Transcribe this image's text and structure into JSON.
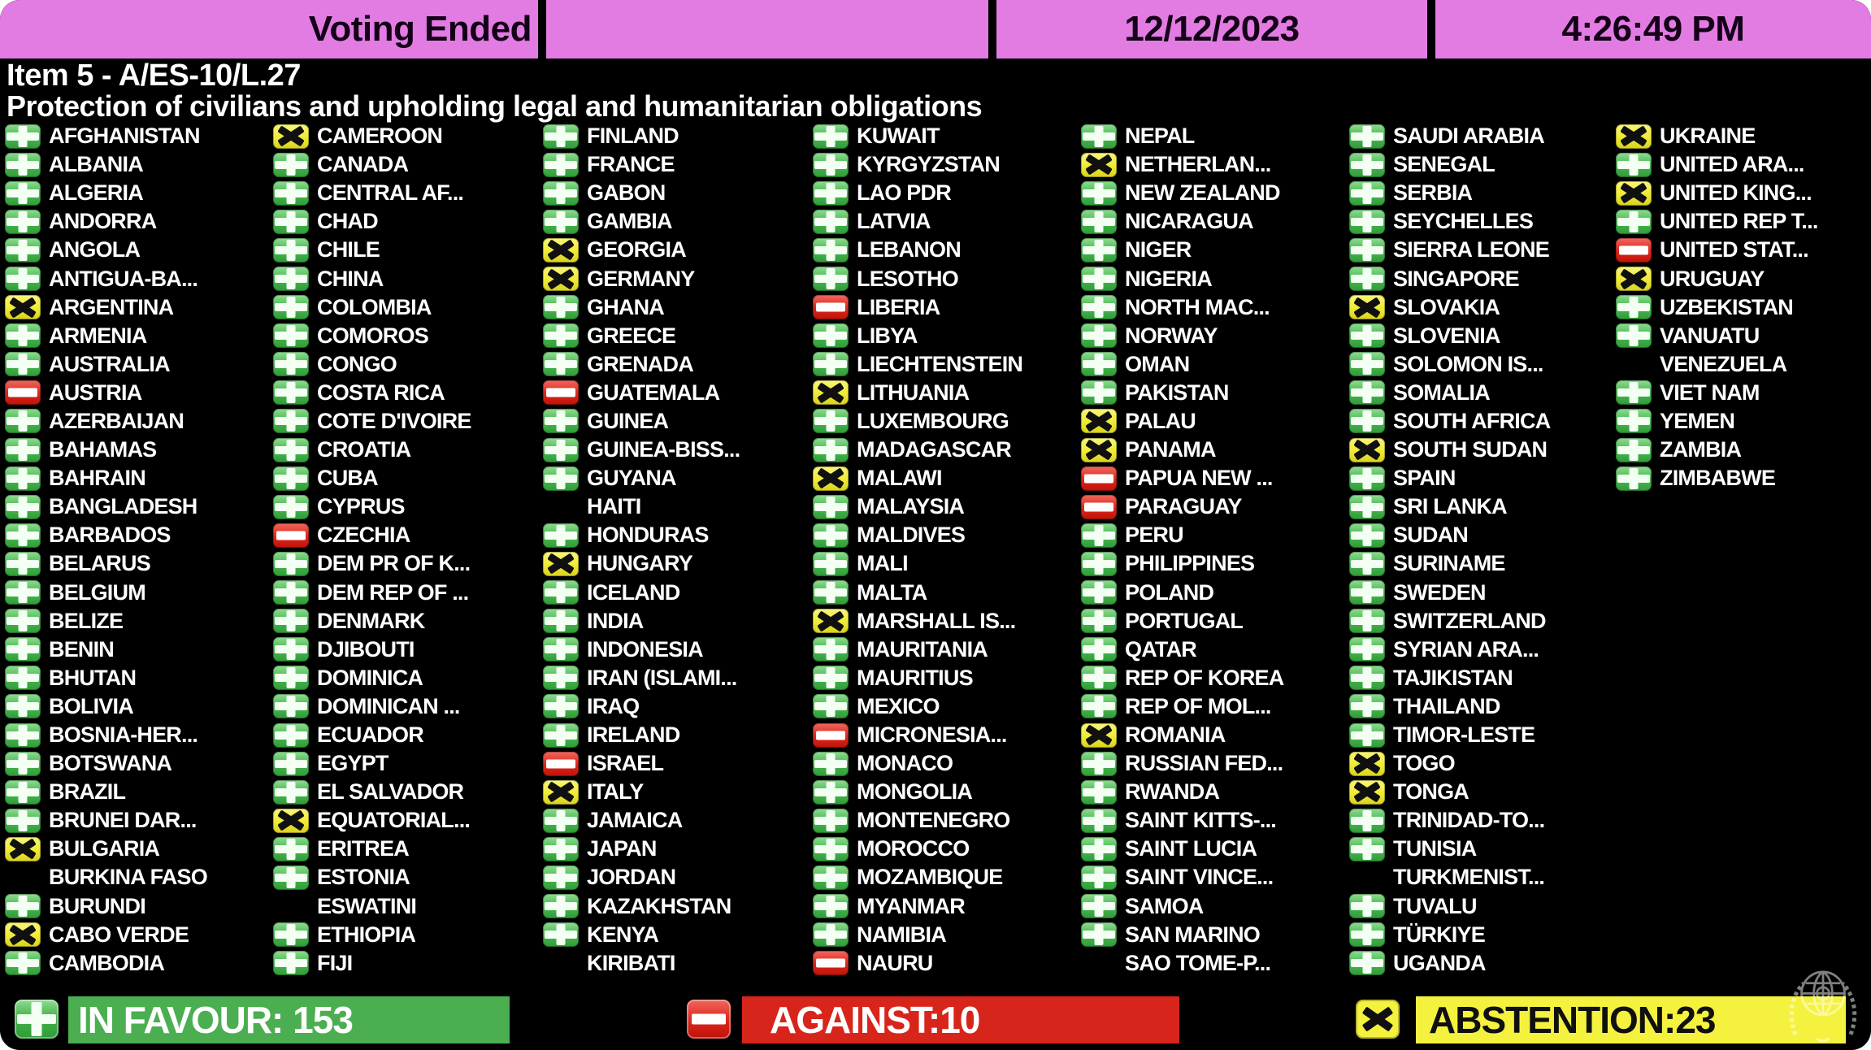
{
  "header": {
    "status": "Voting Ended",
    "date": "12/12/2023",
    "time": "4:26:49 PM",
    "item_line1": "Item 5 - A/ES-10/L.27",
    "item_line2": "Protection of civilians and upholding legal and humanitarian obligations"
  },
  "summary": {
    "in_favour": "IN FAVOUR: 153",
    "against": "AGAINST:10",
    "abstention": "ABSTENTION:23"
  },
  "colors": {
    "header_magenta": "#e27ce2",
    "in_favour_green": "#4bae50",
    "against_red": "#d8251c",
    "abstention_yellow": "#f5f23f",
    "background": "#000000",
    "text_white": "#ffffff"
  },
  "vote_codes": {
    "Y": "in favour",
    "N": "against",
    "A": "abstention",
    "": "no vote recorded"
  },
  "columns": [
    [
      {
        "n": "AFGHANISTAN",
        "v": "Y"
      },
      {
        "n": "ALBANIA",
        "v": "Y"
      },
      {
        "n": "ALGERIA",
        "v": "Y"
      },
      {
        "n": "ANDORRA",
        "v": "Y"
      },
      {
        "n": "ANGOLA",
        "v": "Y"
      },
      {
        "n": "ANTIGUA-BA...",
        "v": "Y"
      },
      {
        "n": "ARGENTINA",
        "v": "A"
      },
      {
        "n": "ARMENIA",
        "v": "Y"
      },
      {
        "n": "AUSTRALIA",
        "v": "Y"
      },
      {
        "n": "AUSTRIA",
        "v": "N"
      },
      {
        "n": "AZERBAIJAN",
        "v": "Y"
      },
      {
        "n": "BAHAMAS",
        "v": "Y"
      },
      {
        "n": "BAHRAIN",
        "v": "Y"
      },
      {
        "n": "BANGLADESH",
        "v": "Y"
      },
      {
        "n": "BARBADOS",
        "v": "Y"
      },
      {
        "n": "BELARUS",
        "v": "Y"
      },
      {
        "n": "BELGIUM",
        "v": "Y"
      },
      {
        "n": "BELIZE",
        "v": "Y"
      },
      {
        "n": "BENIN",
        "v": "Y"
      },
      {
        "n": "BHUTAN",
        "v": "Y"
      },
      {
        "n": "BOLIVIA",
        "v": "Y"
      },
      {
        "n": "BOSNIA-HER...",
        "v": "Y"
      },
      {
        "n": "BOTSWANA",
        "v": "Y"
      },
      {
        "n": "BRAZIL",
        "v": "Y"
      },
      {
        "n": "BRUNEI DAR...",
        "v": "Y"
      },
      {
        "n": "BULGARIA",
        "v": "A"
      },
      {
        "n": "BURKINA FASO",
        "v": ""
      },
      {
        "n": "BURUNDI",
        "v": "Y"
      },
      {
        "n": "CABO VERDE",
        "v": "A"
      },
      {
        "n": "CAMBODIA",
        "v": "Y"
      }
    ],
    [
      {
        "n": "CAMEROON",
        "v": "A"
      },
      {
        "n": "CANADA",
        "v": "Y"
      },
      {
        "n": "CENTRAL AF...",
        "v": "Y"
      },
      {
        "n": "CHAD",
        "v": "Y"
      },
      {
        "n": "CHILE",
        "v": "Y"
      },
      {
        "n": "CHINA",
        "v": "Y"
      },
      {
        "n": "COLOMBIA",
        "v": "Y"
      },
      {
        "n": "COMOROS",
        "v": "Y"
      },
      {
        "n": "CONGO",
        "v": "Y"
      },
      {
        "n": "COSTA RICA",
        "v": "Y"
      },
      {
        "n": "COTE D'IVOIRE",
        "v": "Y"
      },
      {
        "n": "CROATIA",
        "v": "Y"
      },
      {
        "n": "CUBA",
        "v": "Y"
      },
      {
        "n": "CYPRUS",
        "v": "Y"
      },
      {
        "n": "CZECHIA",
        "v": "N"
      },
      {
        "n": "DEM PR OF K...",
        "v": "Y"
      },
      {
        "n": "DEM REP OF ...",
        "v": "Y"
      },
      {
        "n": "DENMARK",
        "v": "Y"
      },
      {
        "n": "DJIBOUTI",
        "v": "Y"
      },
      {
        "n": "DOMINICA",
        "v": "Y"
      },
      {
        "n": "DOMINICAN ...",
        "v": "Y"
      },
      {
        "n": "ECUADOR",
        "v": "Y"
      },
      {
        "n": "EGYPT",
        "v": "Y"
      },
      {
        "n": "EL SALVADOR",
        "v": "Y"
      },
      {
        "n": "EQUATORIAL...",
        "v": "A"
      },
      {
        "n": "ERITREA",
        "v": "Y"
      },
      {
        "n": "ESTONIA",
        "v": "Y"
      },
      {
        "n": "ESWATINI",
        "v": ""
      },
      {
        "n": "ETHIOPIA",
        "v": "Y"
      },
      {
        "n": "FIJI",
        "v": "Y"
      }
    ],
    [
      {
        "n": "FINLAND",
        "v": "Y"
      },
      {
        "n": "FRANCE",
        "v": "Y"
      },
      {
        "n": "GABON",
        "v": "Y"
      },
      {
        "n": "GAMBIA",
        "v": "Y"
      },
      {
        "n": "GEORGIA",
        "v": "A"
      },
      {
        "n": "GERMANY",
        "v": "A"
      },
      {
        "n": "GHANA",
        "v": "Y"
      },
      {
        "n": "GREECE",
        "v": "Y"
      },
      {
        "n": "GRENADA",
        "v": "Y"
      },
      {
        "n": "GUATEMALA",
        "v": "N"
      },
      {
        "n": "GUINEA",
        "v": "Y"
      },
      {
        "n": "GUINEA-BISS...",
        "v": "Y"
      },
      {
        "n": "GUYANA",
        "v": "Y"
      },
      {
        "n": "HAITI",
        "v": ""
      },
      {
        "n": "HONDURAS",
        "v": "Y"
      },
      {
        "n": "HUNGARY",
        "v": "A"
      },
      {
        "n": "ICELAND",
        "v": "Y"
      },
      {
        "n": "INDIA",
        "v": "Y"
      },
      {
        "n": "INDONESIA",
        "v": "Y"
      },
      {
        "n": "IRAN (ISLAMI...",
        "v": "Y"
      },
      {
        "n": "IRAQ",
        "v": "Y"
      },
      {
        "n": "IRELAND",
        "v": "Y"
      },
      {
        "n": "ISRAEL",
        "v": "N"
      },
      {
        "n": "ITALY",
        "v": "A"
      },
      {
        "n": "JAMAICA",
        "v": "Y"
      },
      {
        "n": "JAPAN",
        "v": "Y"
      },
      {
        "n": "JORDAN",
        "v": "Y"
      },
      {
        "n": "KAZAKHSTAN",
        "v": "Y"
      },
      {
        "n": "KENYA",
        "v": "Y"
      },
      {
        "n": "KIRIBATI",
        "v": ""
      }
    ],
    [
      {
        "n": "KUWAIT",
        "v": "Y"
      },
      {
        "n": "KYRGYZSTAN",
        "v": "Y"
      },
      {
        "n": "LAO PDR",
        "v": "Y"
      },
      {
        "n": "LATVIA",
        "v": "Y"
      },
      {
        "n": "LEBANON",
        "v": "Y"
      },
      {
        "n": "LESOTHO",
        "v": "Y"
      },
      {
        "n": "LIBERIA",
        "v": "N"
      },
      {
        "n": "LIBYA",
        "v": "Y"
      },
      {
        "n": "LIECHTENSTEIN",
        "v": "Y"
      },
      {
        "n": "LITHUANIA",
        "v": "A"
      },
      {
        "n": "LUXEMBOURG",
        "v": "Y"
      },
      {
        "n": "MADAGASCAR",
        "v": "Y"
      },
      {
        "n": "MALAWI",
        "v": "A"
      },
      {
        "n": "MALAYSIA",
        "v": "Y"
      },
      {
        "n": "MALDIVES",
        "v": "Y"
      },
      {
        "n": "MALI",
        "v": "Y"
      },
      {
        "n": "MALTA",
        "v": "Y"
      },
      {
        "n": "MARSHALL IS...",
        "v": "A"
      },
      {
        "n": "MAURITANIA",
        "v": "Y"
      },
      {
        "n": "MAURITIUS",
        "v": "Y"
      },
      {
        "n": "MEXICO",
        "v": "Y"
      },
      {
        "n": "MICRONESIA...",
        "v": "N"
      },
      {
        "n": "MONACO",
        "v": "Y"
      },
      {
        "n": "MONGOLIA",
        "v": "Y"
      },
      {
        "n": "MONTENEGRO",
        "v": "Y"
      },
      {
        "n": "MOROCCO",
        "v": "Y"
      },
      {
        "n": "MOZAMBIQUE",
        "v": "Y"
      },
      {
        "n": "MYANMAR",
        "v": "Y"
      },
      {
        "n": "NAMIBIA",
        "v": "Y"
      },
      {
        "n": "NAURU",
        "v": "N"
      }
    ],
    [
      {
        "n": "NEPAL",
        "v": "Y"
      },
      {
        "n": "NETHERLAN...",
        "v": "A"
      },
      {
        "n": "NEW ZEALAND",
        "v": "Y"
      },
      {
        "n": "NICARAGUA",
        "v": "Y"
      },
      {
        "n": "NIGER",
        "v": "Y"
      },
      {
        "n": "NIGERIA",
        "v": "Y"
      },
      {
        "n": "NORTH MAC...",
        "v": "Y"
      },
      {
        "n": "NORWAY",
        "v": "Y"
      },
      {
        "n": "OMAN",
        "v": "Y"
      },
      {
        "n": "PAKISTAN",
        "v": "Y"
      },
      {
        "n": "PALAU",
        "v": "A"
      },
      {
        "n": "PANAMA",
        "v": "A"
      },
      {
        "n": "PAPUA NEW ...",
        "v": "N"
      },
      {
        "n": "PARAGUAY",
        "v": "N"
      },
      {
        "n": "PERU",
        "v": "Y"
      },
      {
        "n": "PHILIPPINES",
        "v": "Y"
      },
      {
        "n": "POLAND",
        "v": "Y"
      },
      {
        "n": "PORTUGAL",
        "v": "Y"
      },
      {
        "n": "QATAR",
        "v": "Y"
      },
      {
        "n": "REP OF KOREA",
        "v": "Y"
      },
      {
        "n": "REP OF MOL...",
        "v": "Y"
      },
      {
        "n": "ROMANIA",
        "v": "A"
      },
      {
        "n": "RUSSIAN FED...",
        "v": "Y"
      },
      {
        "n": "RWANDA",
        "v": "Y"
      },
      {
        "n": "SAINT KITTS-...",
        "v": "Y"
      },
      {
        "n": "SAINT LUCIA",
        "v": "Y"
      },
      {
        "n": "SAINT VINCE...",
        "v": "Y"
      },
      {
        "n": "SAMOA",
        "v": "Y"
      },
      {
        "n": "SAN MARINO",
        "v": "Y"
      },
      {
        "n": "SAO TOME-P...",
        "v": ""
      }
    ],
    [
      {
        "n": "SAUDI ARABIA",
        "v": "Y"
      },
      {
        "n": "SENEGAL",
        "v": "Y"
      },
      {
        "n": "SERBIA",
        "v": "Y"
      },
      {
        "n": "SEYCHELLES",
        "v": "Y"
      },
      {
        "n": "SIERRA LEONE",
        "v": "Y"
      },
      {
        "n": "SINGAPORE",
        "v": "Y"
      },
      {
        "n": "SLOVAKIA",
        "v": "A"
      },
      {
        "n": "SLOVENIA",
        "v": "Y"
      },
      {
        "n": "SOLOMON IS...",
        "v": "Y"
      },
      {
        "n": "SOMALIA",
        "v": "Y"
      },
      {
        "n": "SOUTH AFRICA",
        "v": "Y"
      },
      {
        "n": "SOUTH SUDAN",
        "v": "A"
      },
      {
        "n": "SPAIN",
        "v": "Y"
      },
      {
        "n": "SRI LANKA",
        "v": "Y"
      },
      {
        "n": "SUDAN",
        "v": "Y"
      },
      {
        "n": "SURINAME",
        "v": "Y"
      },
      {
        "n": "SWEDEN",
        "v": "Y"
      },
      {
        "n": "SWITZERLAND",
        "v": "Y"
      },
      {
        "n": "SYRIAN ARA...",
        "v": "Y"
      },
      {
        "n": "TAJIKISTAN",
        "v": "Y"
      },
      {
        "n": "THAILAND",
        "v": "Y"
      },
      {
        "n": "TIMOR-LESTE",
        "v": "Y"
      },
      {
        "n": "TOGO",
        "v": "A"
      },
      {
        "n": "TONGA",
        "v": "A"
      },
      {
        "n": "TRINIDAD-TO...",
        "v": "Y"
      },
      {
        "n": "TUNISIA",
        "v": "Y"
      },
      {
        "n": "TURKMENIST...",
        "v": ""
      },
      {
        "n": "TUVALU",
        "v": "Y"
      },
      {
        "n": "TÜRKIYE",
        "v": "Y"
      },
      {
        "n": "UGANDA",
        "v": "Y"
      }
    ],
    [
      {
        "n": "UKRAINE",
        "v": "A"
      },
      {
        "n": "UNITED ARA...",
        "v": "Y"
      },
      {
        "n": "UNITED KING...",
        "v": "A"
      },
      {
        "n": "UNITED REP T...",
        "v": "Y"
      },
      {
        "n": "UNITED STAT...",
        "v": "N"
      },
      {
        "n": "URUGUAY",
        "v": "A"
      },
      {
        "n": "UZBEKISTAN",
        "v": "Y"
      },
      {
        "n": "VANUATU",
        "v": "Y"
      },
      {
        "n": "VENEZUELA",
        "v": ""
      },
      {
        "n": "VIET NAM",
        "v": "Y"
      },
      {
        "n": "YEMEN",
        "v": "Y"
      },
      {
        "n": "ZAMBIA",
        "v": "Y"
      },
      {
        "n": "ZIMBABWE",
        "v": "Y"
      }
    ]
  ]
}
